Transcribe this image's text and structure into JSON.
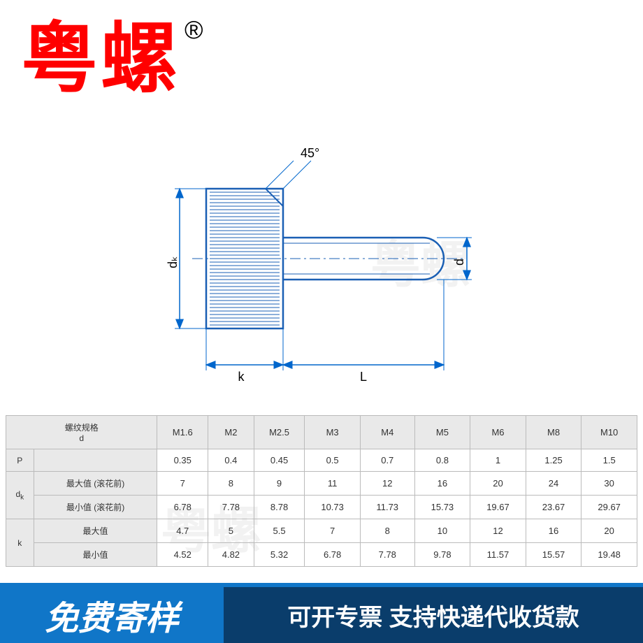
{
  "brand": {
    "text": "粤螺",
    "registered": "®"
  },
  "watermark": "粤螺",
  "diagram": {
    "angle_label": "45°",
    "dk_label": "dₖ",
    "d_label": "d",
    "k_label": "k",
    "L_label": "L",
    "stroke": "#1a5fb4",
    "dim_stroke": "#0066cc"
  },
  "table": {
    "header_label": "螺纹规格\nd",
    "columns": [
      "M1.6",
      "M2",
      "M2.5",
      "M3",
      "M4",
      "M5",
      "M6",
      "M8",
      "M10"
    ],
    "rows": [
      {
        "group": "P",
        "sub": "",
        "vals": [
          "0.35",
          "0.4",
          "0.45",
          "0.5",
          "0.7",
          "0.8",
          "1",
          "1.25",
          "1.5"
        ]
      },
      {
        "group": "dₖ",
        "sub": "最大值 (滚花前)",
        "vals": [
          "7",
          "8",
          "9",
          "11",
          "12",
          "16",
          "20",
          "24",
          "30"
        ]
      },
      {
        "group": "dₖ",
        "sub": "最小值 (滚花前)",
        "vals": [
          "6.78",
          "7.78",
          "8.78",
          "10.73",
          "11.73",
          "15.73",
          "19.67",
          "23.67",
          "29.67"
        ]
      },
      {
        "group": "k",
        "sub": "最大值",
        "vals": [
          "4.7",
          "5",
          "5.5",
          "7",
          "8",
          "10",
          "12",
          "16",
          "20"
        ]
      },
      {
        "group": "k",
        "sub": "最小值",
        "vals": [
          "4.52",
          "4.82",
          "5.32",
          "6.78",
          "7.78",
          "9.78",
          "11.57",
          "15.57",
          "19.48"
        ]
      }
    ]
  },
  "footer": {
    "left": "免费寄样",
    "right": "可开专票 支持快递代收货款"
  }
}
